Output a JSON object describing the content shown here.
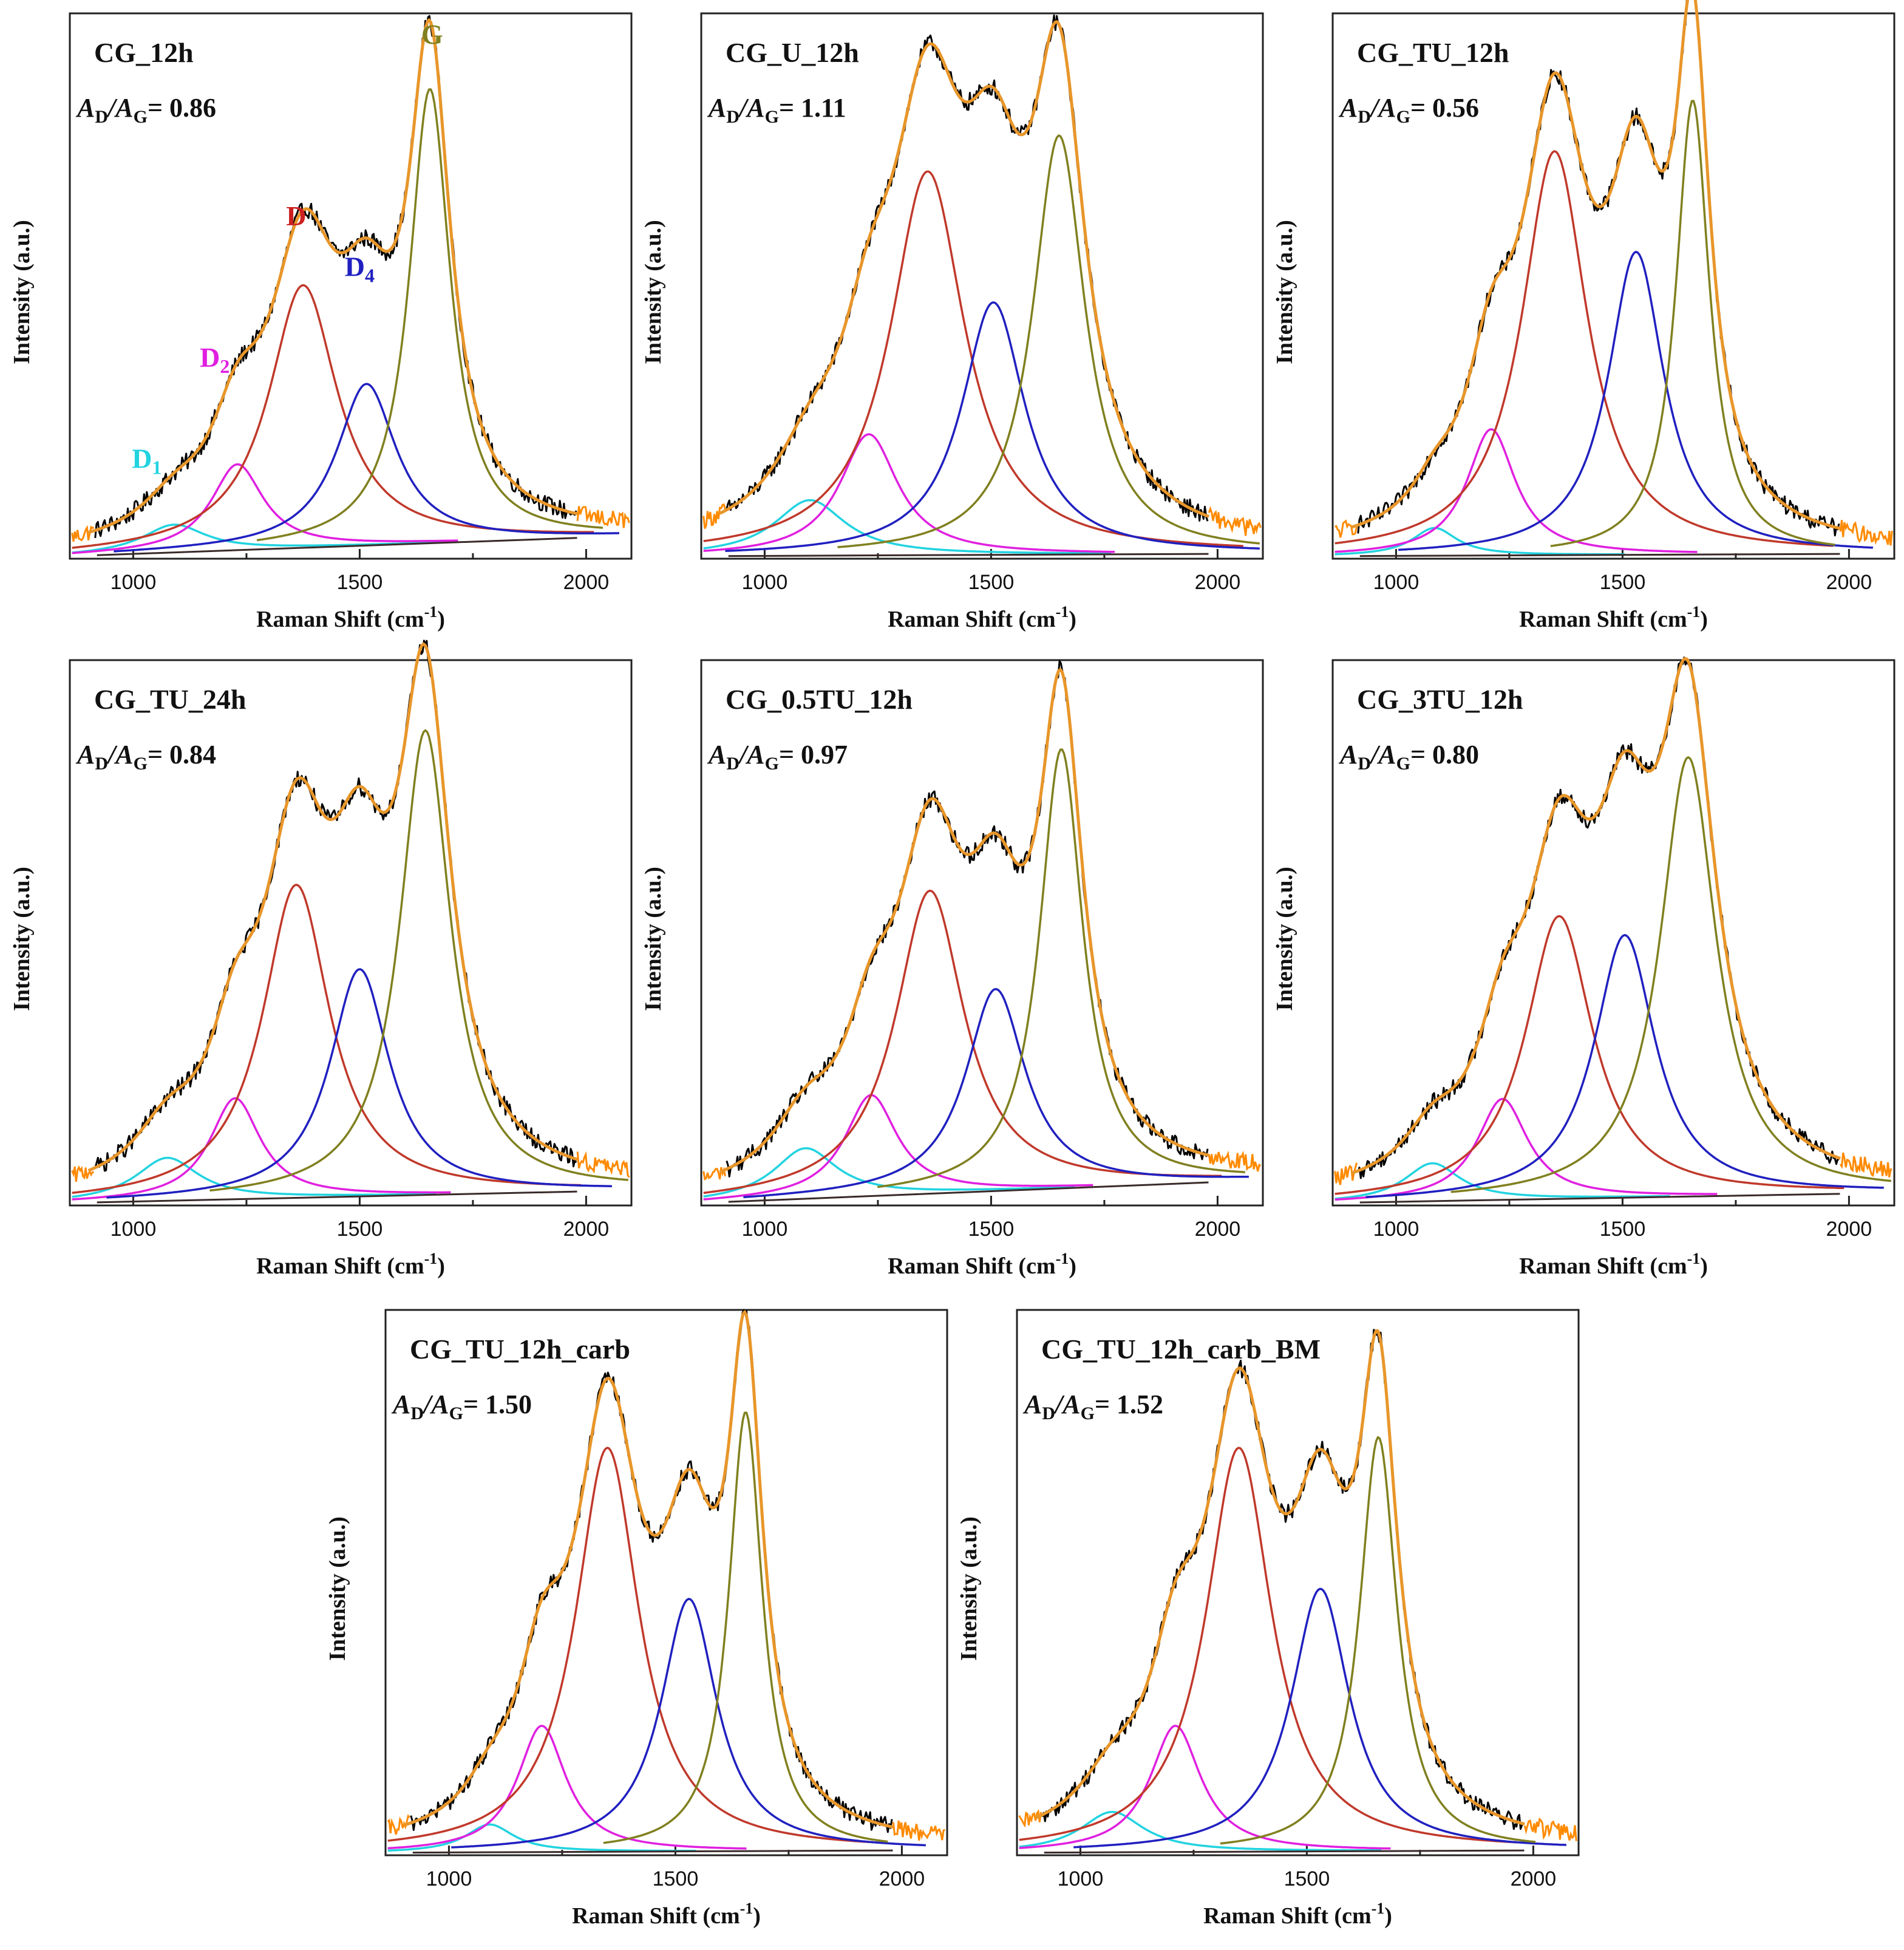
{
  "chart_data": [
    {
      "type": "line",
      "title": "CG_12h",
      "ratio": {
        "label_a": "A",
        "sub_d": "D",
        "slash": "/",
        "sub_g": "G",
        "value": "= 0.86"
      },
      "xlabel": "Raman Shift (cm",
      "xlabel_sup": "-1",
      "xlabel_close": ")",
      "ylabel": "Intensity (a.u.)",
      "xlim": [
        860,
        2100
      ],
      "ylim": [
        0,
        1.08
      ],
      "xticks": [
        1000,
        1500,
        2000
      ],
      "xtick_labels": [
        "1000",
        "1500",
        "2000"
      ],
      "baseline": [
        0.005,
        0.045
      ],
      "peak_labels": [
        {
          "main": "D",
          "sub": "1",
          "color": "#22d3e0",
          "x": 1030,
          "y": 0.18
        },
        {
          "main": "D",
          "sub": "2",
          "color": "#e020e0",
          "x": 1180,
          "y": 0.38
        },
        {
          "main": "D",
          "sub": "",
          "color": "#cc2020",
          "x": 1360,
          "y": 0.66
        },
        {
          "main": "D",
          "sub": "4",
          "color": "#2020c0",
          "x": 1500,
          "y": 0.56
        },
        {
          "main": "G",
          "sub": "",
          "color": "#808020",
          "x": 1660,
          "y": 1.02
        }
      ],
      "series": [
        {
          "name": "D1",
          "color": "#22d3e0",
          "center": 1090,
          "height": 0.055,
          "width": 85
        },
        {
          "name": "D2",
          "color": "#e020e0",
          "center": 1230,
          "height": 0.17,
          "width": 70
        },
        {
          "name": "D",
          "color": "#c0392b",
          "center": 1375,
          "height": 0.52,
          "width": 92
        },
        {
          "name": "D4",
          "color": "#2020c0",
          "center": 1515,
          "height": 0.32,
          "width": 80
        },
        {
          "name": "G",
          "color": "#808020",
          "center": 1655,
          "height": 0.9,
          "width": 55
        }
      ]
    },
    {
      "type": "line",
      "title": "CG_U_12h",
      "ratio": {
        "label_a": "A",
        "sub_d": "D",
        "slash": "/",
        "sub_g": "G",
        "value": "= 1.11"
      },
      "xlabel": "Raman Shift (cm",
      "xlabel_sup": "-1",
      "xlabel_close": ")",
      "ylabel": "Intensity (a.u.)",
      "xlim": [
        860,
        2100
      ],
      "ylim": [
        0,
        1.08
      ],
      "xticks": [
        1000,
        1500,
        2000
      ],
      "xtick_labels": [
        "1000",
        "1500",
        "2000"
      ],
      "baseline": [
        0.005,
        0.01
      ],
      "peak_labels": [],
      "series": [
        {
          "name": "D1",
          "color": "#22d3e0",
          "center": 1100,
          "height": 0.11,
          "width": 95
        },
        {
          "name": "D2",
          "color": "#e020e0",
          "center": 1230,
          "height": 0.24,
          "width": 78
        },
        {
          "name": "D",
          "color": "#c0392b",
          "center": 1360,
          "height": 0.76,
          "width": 100
        },
        {
          "name": "D4",
          "color": "#2020c0",
          "center": 1505,
          "height": 0.5,
          "width": 85
        },
        {
          "name": "G",
          "color": "#808020",
          "center": 1650,
          "height": 0.83,
          "width": 70
        }
      ]
    },
    {
      "type": "line",
      "title": "CG_TU_12h",
      "ratio": {
        "label_a": "A",
        "sub_d": "D",
        "slash": "/",
        "sub_g": "G",
        "value": "= 0.56"
      },
      "xlabel": "Raman Shift (cm",
      "xlabel_sup": "-1",
      "xlabel_close": ")",
      "ylabel": "Intensity (a.u.)",
      "xlim": [
        860,
        2100
      ],
      "ylim": [
        0,
        1.08
      ],
      "xticks": [
        1000,
        1500,
        2000
      ],
      "xtick_labels": [
        "1000",
        "1500",
        "2000"
      ],
      "baseline": [
        0.005,
        0.01
      ],
      "peak_labels": [],
      "series": [
        {
          "name": "D1",
          "color": "#22d3e0",
          "center": 1085,
          "height": 0.055,
          "width": 60
        },
        {
          "name": "D2",
          "color": "#e020e0",
          "center": 1210,
          "height": 0.25,
          "width": 65
        },
        {
          "name": "D",
          "color": "#c0392b",
          "center": 1350,
          "height": 0.8,
          "width": 88
        },
        {
          "name": "D4",
          "color": "#2020c0",
          "center": 1530,
          "height": 0.6,
          "width": 75
        },
        {
          "name": "G",
          "color": "#808020",
          "center": 1655,
          "height": 0.9,
          "width": 45
        }
      ]
    },
    {
      "type": "line",
      "title": "CG_TU_24h",
      "ratio": {
        "label_a": "A",
        "sub_d": "D",
        "slash": "/",
        "sub_g": "G",
        "value": "= 0.84"
      },
      "xlabel": "Raman Shift (cm",
      "xlabel_sup": "-1",
      "xlabel_close": ")",
      "ylabel": "Intensity (a.u.)",
      "xlim": [
        860,
        2100
      ],
      "ylim": [
        0,
        1.08
      ],
      "xticks": [
        1000,
        1500,
        2000
      ],
      "xtick_labels": [
        "1000",
        "1500",
        "2000"
      ],
      "baseline": [
        0.005,
        0.03
      ],
      "peak_labels": [],
      "series": [
        {
          "name": "D1",
          "color": "#22d3e0",
          "center": 1075,
          "height": 0.085,
          "width": 85
        },
        {
          "name": "D2",
          "color": "#e020e0",
          "center": 1225,
          "height": 0.2,
          "width": 68
        },
        {
          "name": "D",
          "color": "#c0392b",
          "center": 1360,
          "height": 0.62,
          "width": 90
        },
        {
          "name": "D4",
          "color": "#2020c0",
          "center": 1500,
          "height": 0.45,
          "width": 80
        },
        {
          "name": "G",
          "color": "#808020",
          "center": 1645,
          "height": 0.92,
          "width": 68
        }
      ]
    },
    {
      "type": "line",
      "title": "CG_0.5TU_12h",
      "ratio": {
        "label_a": "A",
        "sub_d": "D",
        "slash": "/",
        "sub_g": "G",
        "value": "= 0.97"
      },
      "xlabel": "Raman Shift (cm",
      "xlabel_sup": "-1",
      "xlabel_close": ")",
      "ylabel": "Intensity (a.u.)",
      "xlim": [
        860,
        2100
      ],
      "ylim": [
        0,
        1.08
      ],
      "xticks": [
        1000,
        1500,
        2000
      ],
      "xtick_labels": [
        "1000",
        "1500",
        "2000"
      ],
      "baseline": [
        0.005,
        0.05
      ],
      "peak_labels": [],
      "series": [
        {
          "name": "D1",
          "color": "#22d3e0",
          "center": 1090,
          "height": 0.1,
          "width": 85
        },
        {
          "name": "D2",
          "color": "#e020e0",
          "center": 1235,
          "height": 0.2,
          "width": 70
        },
        {
          "name": "D",
          "color": "#c0392b",
          "center": 1365,
          "height": 0.6,
          "width": 92
        },
        {
          "name": "D4",
          "color": "#2020c0",
          "center": 1510,
          "height": 0.4,
          "width": 80
        },
        {
          "name": "G",
          "color": "#808020",
          "center": 1655,
          "height": 0.87,
          "width": 58
        }
      ]
    },
    {
      "type": "line",
      "title": "CG_3TU_12h",
      "ratio": {
        "label_a": "A",
        "sub_d": "D",
        "slash": "/",
        "sub_g": "G",
        "value": "= 0.80"
      },
      "xlabel": "Raman Shift (cm",
      "xlabel_sup": "-1",
      "xlabel_close": ")",
      "ylabel": "Intensity (a.u.)",
      "xlim": [
        860,
        2100
      ],
      "ylim": [
        0,
        1.08
      ],
      "xticks": [
        1000,
        1500,
        2000
      ],
      "xtick_labels": [
        "1000",
        "1500",
        "2000"
      ],
      "baseline": [
        0.005,
        0.025
      ],
      "peak_labels": [],
      "series": [
        {
          "name": "D1",
          "color": "#22d3e0",
          "center": 1080,
          "height": 0.075,
          "width": 75
        },
        {
          "name": "D2",
          "color": "#e020e0",
          "center": 1235,
          "height": 0.2,
          "width": 68
        },
        {
          "name": "D",
          "color": "#c0392b",
          "center": 1360,
          "height": 0.56,
          "width": 90
        },
        {
          "name": "D4",
          "color": "#2020c0",
          "center": 1505,
          "height": 0.52,
          "width": 82
        },
        {
          "name": "G",
          "color": "#808020",
          "center": 1645,
          "height": 0.87,
          "width": 75
        }
      ]
    },
    {
      "type": "line",
      "title": "CG_TU_12h_carb",
      "ratio": {
        "label_a": "A",
        "sub_d": "D",
        "slash": "/",
        "sub_g": "G",
        "value": "= 1.50"
      },
      "xlabel": "Raman Shift (cm",
      "xlabel_sup": "-1",
      "xlabel_close": ")",
      "ylabel": "Intensity (a.u.)",
      "xlim": [
        860,
        2100
      ],
      "ylim": [
        0,
        1.08
      ],
      "xticks": [
        1000,
        1500,
        2000
      ],
      "xtick_labels": [
        "1000",
        "1500",
        "2000"
      ],
      "baseline": [
        0.005,
        0.01
      ],
      "peak_labels": [],
      "series": [
        {
          "name": "D1",
          "color": "#22d3e0",
          "center": 1090,
          "height": 0.055,
          "width": 65
        },
        {
          "name": "D2",
          "color": "#e020e0",
          "center": 1205,
          "height": 0.25,
          "width": 65
        },
        {
          "name": "D",
          "color": "#c0392b",
          "center": 1350,
          "height": 0.8,
          "width": 85
        },
        {
          "name": "D4",
          "color": "#2020c0",
          "center": 1530,
          "height": 0.5,
          "width": 75
        },
        {
          "name": "G",
          "color": "#808020",
          "center": 1655,
          "height": 0.87,
          "width": 45
        }
      ]
    },
    {
      "type": "line",
      "title": "CG_TU_12h_carb_BM",
      "ratio": {
        "label_a": "A",
        "sub_d": "D",
        "slash": "/",
        "sub_g": "G",
        "value": "= 1.52"
      },
      "xlabel": "Raman Shift (cm",
      "xlabel_sup": "-1",
      "xlabel_close": ")",
      "ylabel": "Intensity (a.u.)",
      "xlim": [
        860,
        2100
      ],
      "ylim": [
        0,
        1.08
      ],
      "xticks": [
        1000,
        1500,
        2000
      ],
      "xtick_labels": [
        "1000",
        "1500",
        "2000"
      ],
      "baseline": [
        0.005,
        0.01
      ],
      "peak_labels": [],
      "series": [
        {
          "name": "D1",
          "color": "#22d3e0",
          "center": 1070,
          "height": 0.08,
          "width": 85
        },
        {
          "name": "D2",
          "color": "#e020e0",
          "center": 1210,
          "height": 0.25,
          "width": 68
        },
        {
          "name": "D",
          "color": "#c0392b",
          "center": 1350,
          "height": 0.8,
          "width": 88
        },
        {
          "name": "D4",
          "color": "#2020c0",
          "center": 1530,
          "height": 0.52,
          "width": 78
        },
        {
          "name": "G",
          "color": "#808020",
          "center": 1658,
          "height": 0.82,
          "width": 50
        }
      ]
    }
  ]
}
